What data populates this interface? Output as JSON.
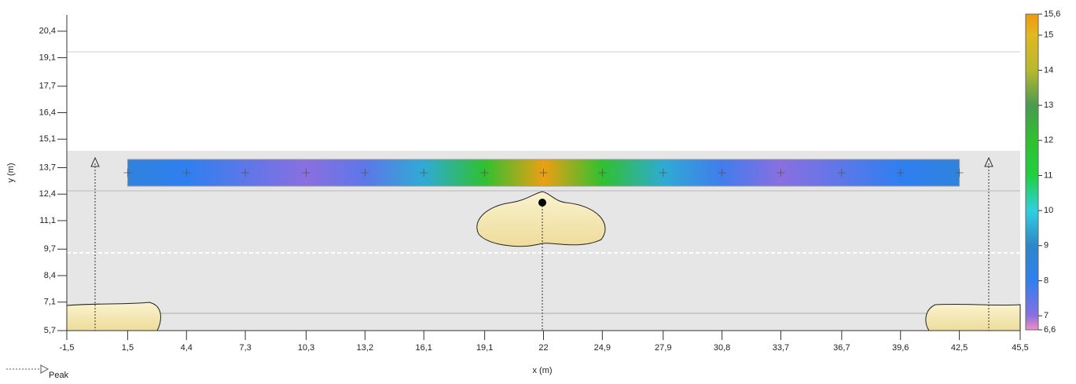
{
  "chart_data": {
    "type": "heatmap-strip",
    "x_label": "x (m)",
    "y_label": "y (m)",
    "legend_label": "Peak",
    "xlim": [
      -1.5,
      45.5
    ],
    "ylim": [
      5.7,
      21.2
    ],
    "xticks": [
      {
        "value": -1.5,
        "label": "-1,5"
      },
      {
        "value": 1.5,
        "label": "1,5"
      },
      {
        "value": 4.4,
        "label": "4,4"
      },
      {
        "value": 7.3,
        "label": "7,3"
      },
      {
        "value": 10.3,
        "label": "10,3"
      },
      {
        "value": 13.2,
        "label": "13,2"
      },
      {
        "value": 16.1,
        "label": "16,1"
      },
      {
        "value": 19.1,
        "label": "19,1"
      },
      22,
      {
        "value": 24.9,
        "label": "24,9"
      },
      {
        "value": 27.9,
        "label": "27,9"
      },
      {
        "value": 30.8,
        "label": "30,8"
      },
      {
        "value": 33.7,
        "label": "33,7"
      },
      {
        "value": 36.7,
        "label": "36,7"
      },
      {
        "value": 39.6,
        "label": "39,6"
      },
      {
        "value": 42.5,
        "label": "42,5"
      },
      {
        "value": 45.5,
        "label": "45,5"
      }
    ],
    "yticks": [
      {
        "value": 5.7,
        "label": "5,7"
      },
      {
        "value": 7.1,
        "label": "7,1"
      },
      {
        "value": 8.4,
        "label": "8,4"
      },
      {
        "value": 9.7,
        "label": "9,7"
      },
      {
        "value": 11.1,
        "label": "11,1"
      },
      {
        "value": 12.4,
        "label": "12,4"
      },
      {
        "value": 13.7,
        "label": "13,7"
      },
      {
        "value": 15.1,
        "label": "15,1"
      },
      {
        "value": 16.4,
        "label": "16,4"
      },
      {
        "value": 17.7,
        "label": "17,7"
      },
      {
        "value": 19.1,
        "label": "19,1"
      },
      {
        "value": 20.4,
        "label": "20,4"
      }
    ],
    "x": [
      1.5,
      4.4,
      7.3,
      10.3,
      13.2,
      16.1,
      19.1,
      22,
      24.9,
      27.9,
      30.8,
      33.7,
      36.7,
      39.6,
      42.5
    ],
    "values": [
      8.5,
      8,
      7.5,
      7,
      7.5,
      9.5,
      12,
      15.5,
      12,
      9.5,
      7.8,
      7,
      7.5,
      8,
      8.5
    ],
    "colorbar": {
      "lim": [
        6.6,
        15.6
      ],
      "ticks": [
        {
          "value": 6.6,
          "label": "6,6"
        },
        7,
        8,
        9,
        10,
        11,
        12,
        13,
        14,
        15,
        {
          "value": 15.6,
          "label": "15,6"
        }
      ],
      "colors": [
        "#f48fc0",
        "#8a6fe0",
        "#2f7ff0",
        "#2f86c8",
        "#2fd0e0",
        "#20d040",
        "#30c030",
        "#4a9a50",
        "#b8b830",
        "#e0b820",
        "#f09a10"
      ]
    }
  }
}
